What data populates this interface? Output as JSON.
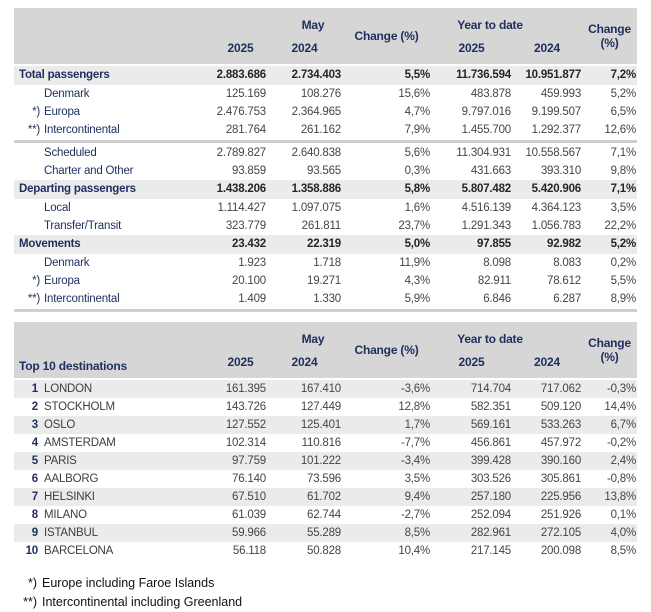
{
  "colors": {
    "header_bg": "#d6d6d6",
    "stripe_bg": "#ebebeb",
    "navy_text": "#1e2f5d",
    "number_text": "#454545"
  },
  "columns": {
    "period": "May",
    "ytd": "Year to date",
    "y2025": "2025",
    "y2024": "2024",
    "change": "Change (%)"
  },
  "traffic_table": {
    "rows": [
      {
        "style": "section",
        "prefix": "",
        "label": "Total passengers",
        "may_2025": "2.883.686",
        "may_2024": "2.734.403",
        "change_may": "5,5%",
        "ytd_2025": "11.736.594",
        "ytd_2024": "10.951.877",
        "change_ytd": "7,2%"
      },
      {
        "style": "sub",
        "prefix": "",
        "label": "Denmark",
        "may_2025": "125.169",
        "may_2024": "108.276",
        "change_may": "15,6%",
        "ytd_2025": "483.878",
        "ytd_2024": "459.993",
        "change_ytd": "5,2%"
      },
      {
        "style": "sub",
        "prefix": "*)",
        "label": "Europa",
        "may_2025": "2.476.753",
        "may_2024": "2.364.965",
        "change_may": "4,7%",
        "ytd_2025": "9.797.016",
        "ytd_2024": "9.199.507",
        "change_ytd": "6,5%"
      },
      {
        "style": "sub",
        "prefix": "**)",
        "label": "Intercontinental",
        "may_2025": "281.764",
        "may_2024": "261.162",
        "change_may": "7,9%",
        "ytd_2025": "1.455.700",
        "ytd_2024": "1.292.377",
        "change_ytd": "12,6%"
      },
      {
        "style": "separator"
      },
      {
        "style": "sub",
        "prefix": "",
        "label": "Scheduled",
        "may_2025": "2.789.827",
        "may_2024": "2.640.838",
        "change_may": "5,6%",
        "ytd_2025": "11.304.931",
        "ytd_2024": "10.558.567",
        "change_ytd": "7,1%"
      },
      {
        "style": "sub",
        "prefix": "",
        "label": "Charter and Other",
        "may_2025": "93.859",
        "may_2024": "93.565",
        "change_may": "0,3%",
        "ytd_2025": "431.663",
        "ytd_2024": "393.310",
        "change_ytd": "9,8%"
      },
      {
        "style": "section",
        "prefix": "",
        "label": "Departing passengers",
        "may_2025": "1.438.206",
        "may_2024": "1.358.886",
        "change_may": "5,8%",
        "ytd_2025": "5.807.482",
        "ytd_2024": "5.420.906",
        "change_ytd": "7,1%"
      },
      {
        "style": "sub",
        "prefix": "",
        "label": "Local",
        "may_2025": "1.114.427",
        "may_2024": "1.097.075",
        "change_may": "1,6%",
        "ytd_2025": "4.516.139",
        "ytd_2024": "4.364.123",
        "change_ytd": "3,5%"
      },
      {
        "style": "sub",
        "prefix": "",
        "label": "Transfer/Transit",
        "may_2025": "323.779",
        "may_2024": "261.811",
        "change_may": "23,7%",
        "ytd_2025": "1.291.343",
        "ytd_2024": "1.056.783",
        "change_ytd": "22,2%"
      },
      {
        "style": "section",
        "prefix": "",
        "label": "Movements",
        "may_2025": "23.432",
        "may_2024": "22.319",
        "change_may": "5,0%",
        "ytd_2025": "97.855",
        "ytd_2024": "92.982",
        "change_ytd": "5,2%"
      },
      {
        "style": "sub",
        "prefix": "",
        "label": "Denmark",
        "may_2025": "1.923",
        "may_2024": "1.718",
        "change_may": "11,9%",
        "ytd_2025": "8.098",
        "ytd_2024": "8.083",
        "change_ytd": "0,2%"
      },
      {
        "style": "sub",
        "prefix": "*)",
        "label": "Europa",
        "may_2025": "20.100",
        "may_2024": "19.271",
        "change_may": "4,3%",
        "ytd_2025": "82.911",
        "ytd_2024": "78.612",
        "change_ytd": "5,5%"
      },
      {
        "style": "sub",
        "prefix": "**)",
        "label": "Intercontinental",
        "may_2025": "1.409",
        "may_2024": "1.330",
        "change_may": "5,9%",
        "ytd_2025": "6.846",
        "ytd_2024": "6.287",
        "change_ytd": "8,9%"
      },
      {
        "style": "bottom-band"
      }
    ]
  },
  "destinations_table": {
    "title": "Top 10 destinations",
    "rows": [
      {
        "rank": "1",
        "label": "LONDON",
        "may_2025": "161.395",
        "may_2024": "167.410",
        "change_may": "-3,6%",
        "ytd_2025": "714.704",
        "ytd_2024": "717.062",
        "change_ytd": "-0,3%"
      },
      {
        "rank": "2",
        "label": "STOCKHOLM",
        "may_2025": "143.726",
        "may_2024": "127.449",
        "change_may": "12,8%",
        "ytd_2025": "582.351",
        "ytd_2024": "509.120",
        "change_ytd": "14,4%"
      },
      {
        "rank": "3",
        "label": "OSLO",
        "may_2025": "127.552",
        "may_2024": "125.401",
        "change_may": "1,7%",
        "ytd_2025": "569.161",
        "ytd_2024": "533.263",
        "change_ytd": "6,7%"
      },
      {
        "rank": "4",
        "label": "AMSTERDAM",
        "may_2025": "102.314",
        "may_2024": "110.816",
        "change_may": "-7,7%",
        "ytd_2025": "456.861",
        "ytd_2024": "457.972",
        "change_ytd": "-0,2%"
      },
      {
        "rank": "5",
        "label": "PARIS",
        "may_2025": "97.759",
        "may_2024": "101.222",
        "change_may": "-3,4%",
        "ytd_2025": "399.428",
        "ytd_2024": "390.160",
        "change_ytd": "2,4%"
      },
      {
        "rank": "6",
        "label": "AALBORG",
        "may_2025": "76.140",
        "may_2024": "73.596",
        "change_may": "3,5%",
        "ytd_2025": "303.526",
        "ytd_2024": "305.861",
        "change_ytd": "-0,8%"
      },
      {
        "rank": "7",
        "label": "HELSINKI",
        "may_2025": "67.510",
        "may_2024": "61.702",
        "change_may": "9,4%",
        "ytd_2025": "257.180",
        "ytd_2024": "225.956",
        "change_ytd": "13,8%"
      },
      {
        "rank": "8",
        "label": "MILANO",
        "may_2025": "61.039",
        "may_2024": "62.744",
        "change_may": "-2,7%",
        "ytd_2025": "252.094",
        "ytd_2024": "251.926",
        "change_ytd": "0,1%"
      },
      {
        "rank": "9",
        "label": "ISTANBUL",
        "may_2025": "59.966",
        "may_2024": "55.289",
        "change_may": "8,5%",
        "ytd_2025": "282.961",
        "ytd_2024": "272.105",
        "change_ytd": "4,0%"
      },
      {
        "rank": "10",
        "label": "BARCELONA",
        "may_2025": "56.118",
        "may_2024": "50.828",
        "change_may": "10,4%",
        "ytd_2025": "217.145",
        "ytd_2024": "200.098",
        "change_ytd": "8,5%"
      }
    ]
  },
  "footnotes": [
    {
      "prefix": "*)",
      "text": "Europe including Faroe Islands"
    },
    {
      "prefix": "**)",
      "text": "Intercontinental including Greenland"
    }
  ]
}
